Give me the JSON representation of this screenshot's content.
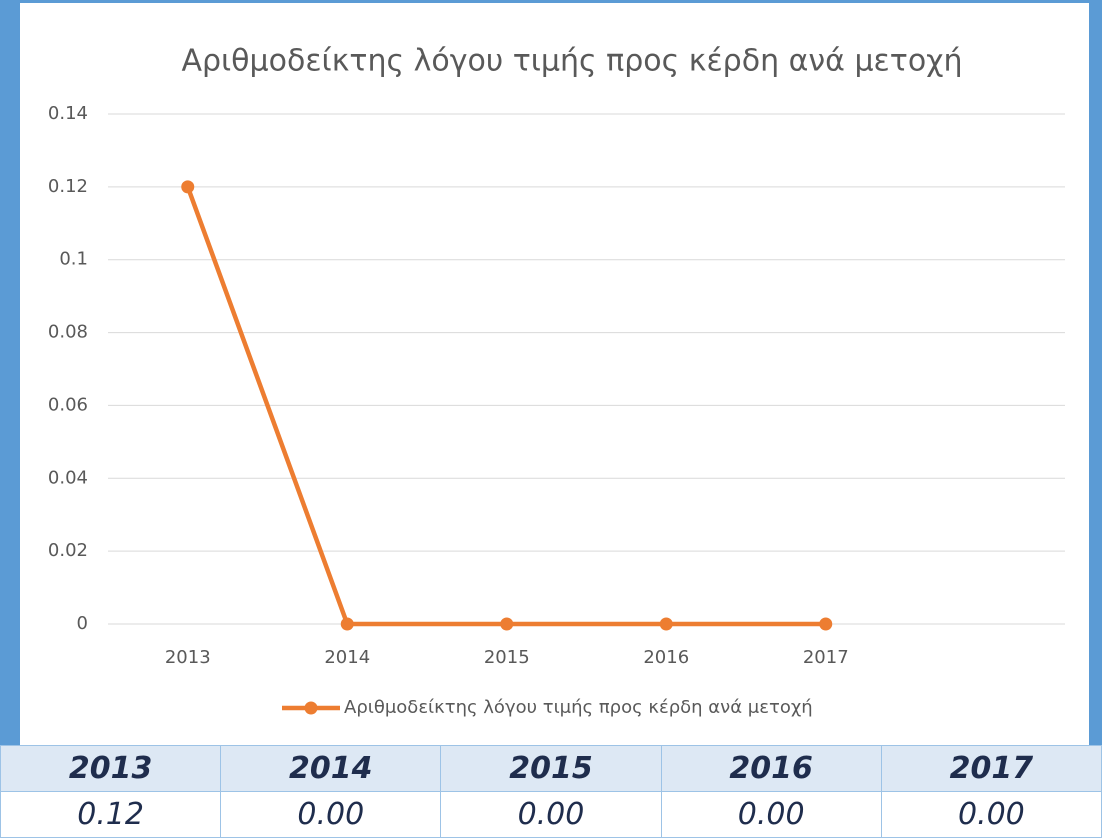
{
  "chart_data": {
    "type": "line",
    "title": "Αριθμοδείκτης λόγου τιμής προς κέρδη ανά μετοχή",
    "categories": [
      "2013",
      "2014",
      "2015",
      "2016",
      "2017",
      null
    ],
    "series": [
      {
        "name": "Αριθμοδείκτης λόγου τιμής προς κέρδη ανά μετοχή",
        "color": "#ed7d31",
        "values": [
          0.12,
          0,
          0,
          0,
          0,
          null
        ]
      }
    ],
    "ylim": [
      0,
      0.14
    ],
    "yticks": [
      0,
      0.02,
      0.04,
      0.06,
      0.08,
      0.1,
      0.12,
      0.14
    ],
    "grid": true,
    "legend": "bottom"
  },
  "table": {
    "header": [
      "2013",
      "2014",
      "2015",
      "2016",
      "2017"
    ],
    "rows": [
      [
        "0.12",
        "0.00",
        "0.00",
        "0.00",
        "0.00"
      ]
    ]
  }
}
